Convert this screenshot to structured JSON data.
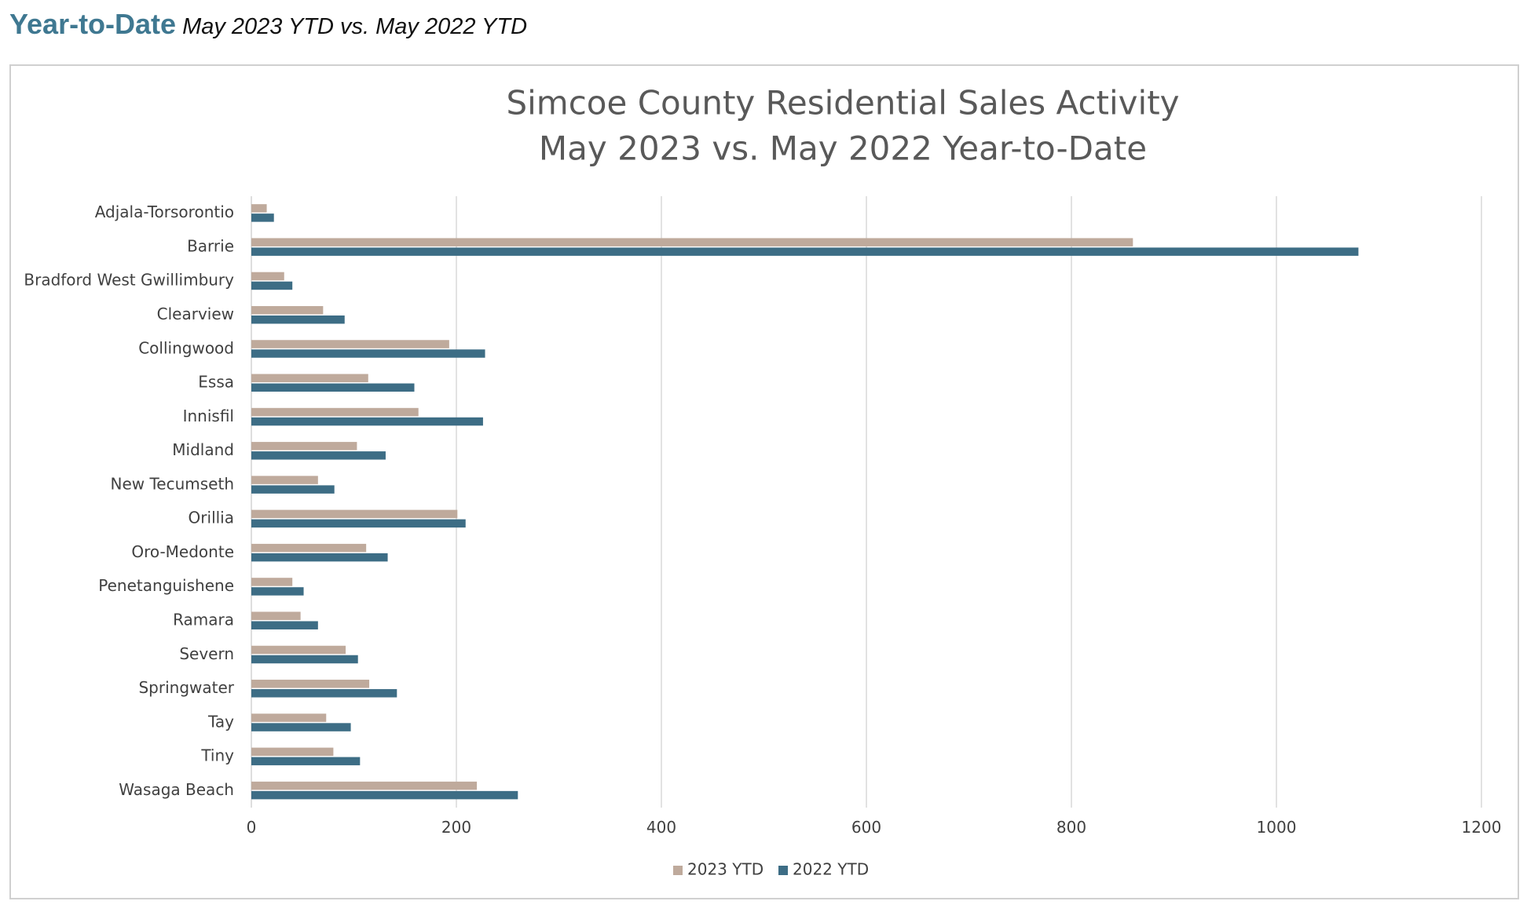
{
  "header": {
    "title": "Year-to-Date",
    "subtitle": "May 2023 YTD vs. May 2022 YTD"
  },
  "chart_data": {
    "type": "bar",
    "orientation": "horizontal",
    "title": [
      "Simcoe County Residential Sales Activity",
      "May 2023 vs. May 2022 Year-to-Date"
    ],
    "xlabel": "",
    "ylabel": "",
    "xlim": [
      0,
      1200
    ],
    "x_ticks": [
      0,
      200,
      400,
      600,
      800,
      1000,
      1200
    ],
    "grid": "vertical",
    "legend_position": "bottom",
    "categories": [
      "Adjala-Torsorontio",
      "Barrie",
      "Bradford West Gwillimbury",
      "Clearview",
      "Collingwood",
      "Essa",
      "Innisfil",
      "Midland",
      "New Tecumseth",
      "Orillia",
      "Oro-Medonte",
      "Penetanguishene",
      "Ramara",
      "Severn",
      "Springwater",
      "Tay",
      "Tiny",
      "Wasaga Beach"
    ],
    "series": [
      {
        "name": "2023 YTD",
        "color": "#bfaa9c",
        "values": [
          15,
          860,
          32,
          70,
          193,
          114,
          163,
          103,
          65,
          201,
          112,
          40,
          48,
          92,
          115,
          73,
          80,
          220
        ]
      },
      {
        "name": "2022 YTD",
        "color": "#3d6d85",
        "values": [
          22,
          1080,
          40,
          91,
          228,
          159,
          226,
          131,
          81,
          209,
          133,
          51,
          65,
          104,
          142,
          97,
          106,
          260
        ]
      }
    ]
  }
}
